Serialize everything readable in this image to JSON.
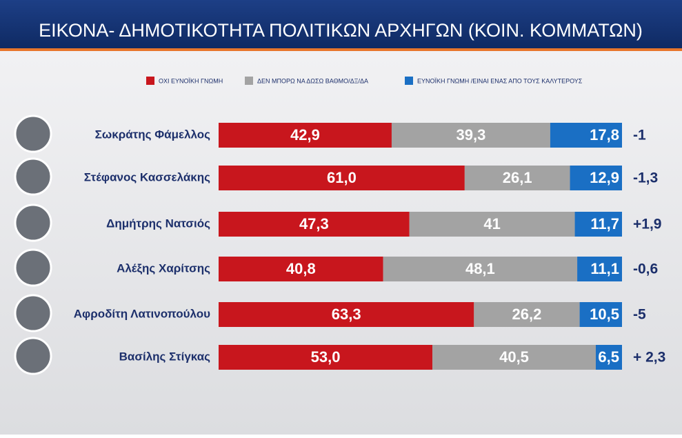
{
  "chart_data": {
    "type": "stacked-bar",
    "title": "ΕΙΚΟΝΑ- ΔΗΜΟΤΙΚΟΤΗΤΑ ΠΟΛΙΤΙΚΩΝ ΑΡΧΗΓΩΝ (ΚΟΙΝ. ΚΟΜΜΑΤΩΝ)",
    "categories": [
      "Σωκράτης Φάμελλος",
      "Στέφανος Κασσελάκης",
      "Δημήτρης Νατσιός",
      "Αλέξης Χαρίτσης",
      "Αφροδίτη Λατινοπούλου",
      "Βασίλης Στίγκας"
    ],
    "series": [
      {
        "name": "ΟΧΙ ΕΥΝΟΪΚΗ ΓΝΩΜΗ",
        "color": "#c8161d",
        "values": [
          42.9,
          61.0,
          47.3,
          40.8,
          63.3,
          53.0
        ],
        "value_labels": [
          "42,9",
          "61,0",
          "47,3",
          "40,8",
          "63,3",
          "53,0"
        ]
      },
      {
        "name": "ΔΕΝ ΜΠΟΡΩ ΝΑ ΔΩΣΩ ΒΑΘΜΟ/ΔΞ/ΔΑ",
        "color": "#a3a3a3",
        "values": [
          39.3,
          26.1,
          41,
          48.1,
          26.2,
          40.5
        ],
        "value_labels": [
          "39,3",
          "26,1",
          "41",
          "48,1",
          "26,2",
          "40,5"
        ]
      },
      {
        "name": "ΕΥΝΟΪΚΗ ΓΝΩΜΗ /ΕΙΝΑΙ ΕΝΑΣ ΑΠΟ ΤΟΥΣ ΚΑΛΥΤΕΡΟΥΣ",
        "color": "#1a6fc4",
        "values": [
          17.8,
          12.9,
          11.7,
          11.1,
          10.5,
          6.5
        ],
        "value_labels": [
          "17,8",
          "12,9",
          "11,7",
          "11,1",
          "10,5",
          "6,5"
        ]
      }
    ],
    "change_labels": [
      "-1",
      "-1,3",
      "+1,9",
      "-0,6",
      "-5",
      "+ 2,3"
    ]
  }
}
